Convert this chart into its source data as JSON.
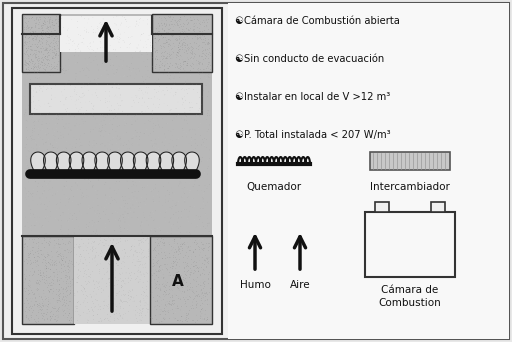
{
  "bg_color": "#f0f0f0",
  "panel_bg": "#f8f8f8",
  "appliance_fill": "#c0c0c0",
  "appliance_inner": "#d8d8d8",
  "exchanger_fill": "#e8e8e8",
  "text_color": "#111111",
  "title_lines": [
    "☯Camara de Combustion abierta",
    "☯Sin conducto de evacuacion",
    "☯Instalar en local de V >12 m³",
    "☯P. Total instalada < 207 W/m³"
  ],
  "title_lines_display": [
    "⊙Cámara de Combustión abierta",
    "⊙Sin conducto de evacuación",
    "⊙Instalar en local de V >12 m³",
    "⊙P. Total instalada < 207 W/m³"
  ]
}
